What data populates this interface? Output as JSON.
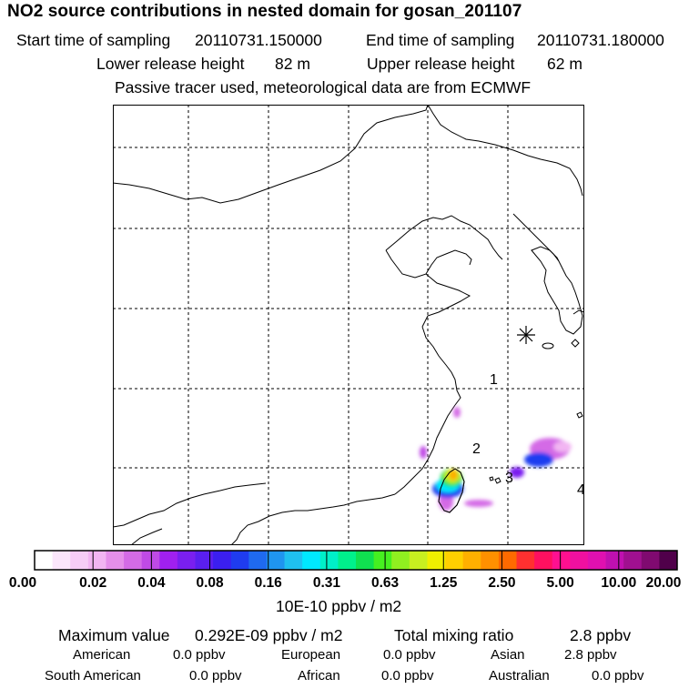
{
  "header": {
    "title": "NO2 source contributions in nested domain for gosan_201107",
    "start_label": "Start time of sampling",
    "start_value": "20110731.150000",
    "end_label": "End time of sampling",
    "end_value": "20110731.180000",
    "lower_label": "Lower release height",
    "lower_value": "82 m",
    "upper_label": "Upper release height",
    "upper_value": "62 m",
    "note": "Passive tracer used, meteorological data are from ECMWF"
  },
  "map": {
    "labels": [
      "1",
      "2",
      "3",
      "4"
    ],
    "receptor_icon": "asterisk-icon"
  },
  "colorbar": {
    "colors": [
      "#ffffff",
      "#fbe6fb",
      "#f6cdf6",
      "#f2b5f2",
      "#e58fea",
      "#d46be6",
      "#c04ae6",
      "#a020f0",
      "#7a1ff0",
      "#5a1ff0",
      "#3b1ff0",
      "#1f3cf0",
      "#1f6af0",
      "#1f95f0",
      "#1fc0f0",
      "#00e8ff",
      "#00f0c8",
      "#00f08c",
      "#10e050",
      "#46f020",
      "#90f020",
      "#c8f020",
      "#f0f000",
      "#ffd000",
      "#ffb000",
      "#ff9000",
      "#ff6a00",
      "#ff3030",
      "#ff1060",
      "#ff1090",
      "#f010a0",
      "#e010b0",
      "#c010b0",
      "#a01090",
      "#800a70",
      "#50004a"
    ],
    "ticks": [
      "0.00",
      "0.02",
      "0.04",
      "0.08",
      "0.16",
      "0.31",
      "0.63",
      "1.25",
      "2.50",
      "5.00",
      "10.00",
      "20.00"
    ],
    "unit": "10E-10 ppbv / m2"
  },
  "stats": {
    "max_label": "Maximum value",
    "max_value": "0.292E-09 ppbv / m2",
    "total_label": "Total mixing ratio",
    "total_value": "2.8 ppbv",
    "regions": [
      {
        "name": "American",
        "value": "0.0 ppbv"
      },
      {
        "name": "European",
        "value": "0.0 ppbv"
      },
      {
        "name": "Asian",
        "value": "2.8 ppbv"
      },
      {
        "name": "South American",
        "value": "0.0 ppbv"
      },
      {
        "name": "African",
        "value": "0.0 ppbv"
      },
      {
        "name": "Australian",
        "value": "0.0 ppbv"
      }
    ]
  }
}
